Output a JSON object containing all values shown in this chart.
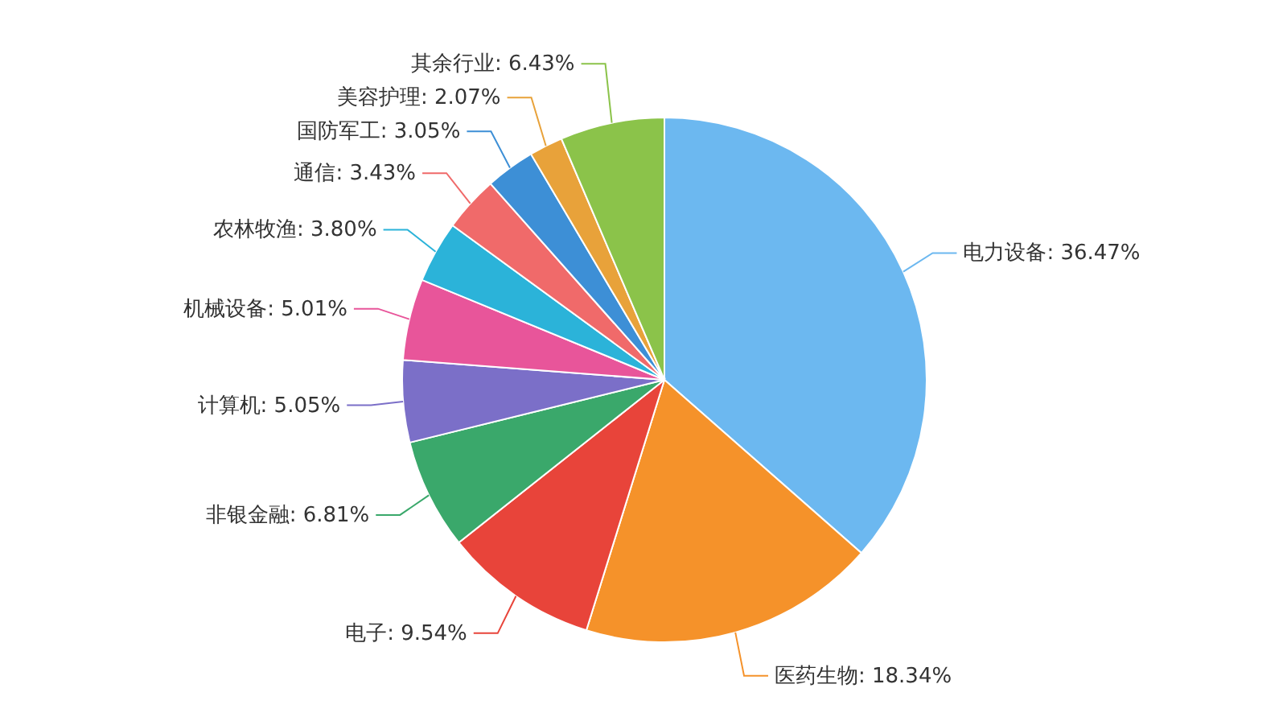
{
  "chart_data": {
    "type": "pie",
    "categories": [
      "电力设备",
      "医药生物",
      "电子",
      "非银金融",
      "计算机",
      "机械设备",
      "农林牧渔",
      "通信",
      "国防军工",
      "美容护理",
      "其余行业"
    ],
    "values": [
      36.47,
      18.34,
      9.54,
      6.81,
      5.05,
      5.01,
      3.8,
      3.43,
      3.05,
      2.07,
      6.43
    ],
    "colors": [
      "#6cb8f0",
      "#f5922a",
      "#e8443a",
      "#3aa86b",
      "#7b6fc8",
      "#e8559a",
      "#2bb3d9",
      "#f06a6a",
      "#3d8fd6",
      "#e8a23a",
      "#8bc34a"
    ],
    "value_labels": [
      ": 36.47%",
      ": 18.34%",
      ": 9.54%",
      ": 6.81%",
      ": 5.05%",
      ": 5.01%",
      ": 3.80%",
      ": 3.43%",
      ": 3.05%",
      ": 2.07%",
      ": 6.43%"
    ]
  }
}
